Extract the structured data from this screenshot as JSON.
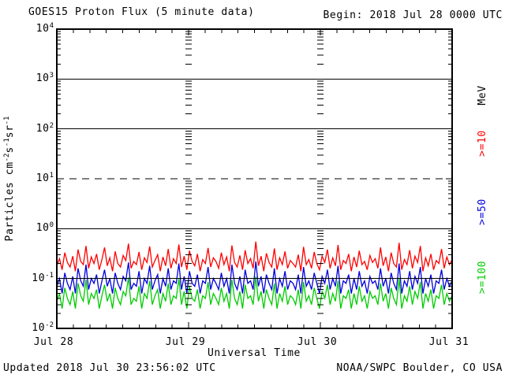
{
  "footer": {
    "updated": "Updated 2018 Jul 30 23:56:02 UTC",
    "source": "NOAA/SWPC Boulder, CO USA"
  },
  "chart_data": {
    "type": "line",
    "title": "GOES15 Proton Flux (5 minute data)",
    "begin_annotation": "Begin: 2018 Jul 28 0000 UTC",
    "xlabel": "Universal Time",
    "ylabel": "Particles cm^-2 s^-1 sr^-1",
    "ylabel_parts": {
      "p0": "Particles cm",
      "e0": "-2",
      "p1": "s",
      "e1": "-1",
      "p2": "sr",
      "e2": "-1"
    },
    "y_scale": "log",
    "ylim": [
      0.01,
      10000
    ],
    "y_ticks": [
      {
        "base": "10",
        "exp": "4"
      },
      {
        "base": "10",
        "exp": "3"
      },
      {
        "base": "10",
        "exp": "2"
      },
      {
        "base": "10",
        "exp": "1"
      },
      {
        "base": "10",
        "exp": "0"
      },
      {
        "base": "10",
        "exp": "-1"
      },
      {
        "base": "10",
        "exp": "-2"
      }
    ],
    "x_ticks": [
      "Jul 28",
      "Jul 29",
      "Jul 30",
      "Jul 31"
    ],
    "x_range_days": 3,
    "minor_x_tick_hours": 3,
    "grid": {
      "solid_levels": [
        1000,
        100,
        1,
        0.1
      ],
      "dashed_levels": [
        10
      ],
      "day_boundary_log_tick_columns": true
    },
    "legend_position": "right",
    "right_axis_unit": "MeV",
    "series": [
      {
        "name": "Proton flux >=10 MeV",
        "label": ">=10",
        "color": "#fe0000",
        "values": [
          0.18,
          0.25,
          0.15,
          0.33,
          0.21,
          0.17,
          0.28,
          0.14,
          0.38,
          0.22,
          0.19,
          0.45,
          0.16,
          0.27,
          0.2,
          0.31,
          0.15,
          0.24,
          0.42,
          0.18,
          0.26,
          0.14,
          0.35,
          0.2,
          0.17,
          0.29,
          0.23,
          0.5,
          0.16,
          0.22,
          0.19,
          0.34,
          0.15,
          0.26,
          0.21,
          0.44,
          0.17,
          0.23,
          0.3,
          0.14,
          0.27,
          0.18,
          0.39,
          0.16,
          0.25,
          0.2,
          0.48,
          0.17,
          0.28,
          0.15,
          0.36,
          0.22,
          0.18,
          0.31,
          0.14,
          0.24,
          0.2,
          0.41,
          0.17,
          0.26,
          0.22,
          0.16,
          0.33,
          0.19,
          0.27,
          0.14,
          0.46,
          0.21,
          0.17,
          0.29,
          0.15,
          0.37,
          0.2,
          0.25,
          0.16,
          0.55,
          0.18,
          0.28,
          0.14,
          0.32,
          0.21,
          0.17,
          0.4,
          0.15,
          0.26,
          0.19,
          0.35,
          0.16,
          0.23,
          0.2,
          0.17,
          0.3,
          0.14,
          0.43,
          0.19,
          0.24,
          0.16,
          0.34,
          0.2,
          0.15,
          0.28,
          0.21,
          0.38,
          0.16,
          0.26,
          0.18,
          0.47,
          0.15,
          0.23,
          0.2,
          0.31,
          0.14,
          0.27,
          0.17,
          0.36,
          0.19,
          0.22,
          0.15,
          0.29,
          0.21,
          0.25,
          0.16,
          0.42,
          0.18,
          0.27,
          0.14,
          0.33,
          0.2,
          0.17,
          0.52,
          0.15,
          0.24,
          0.19,
          0.37,
          0.16,
          0.28,
          0.21,
          0.45,
          0.14,
          0.26,
          0.18,
          0.31,
          0.15,
          0.23,
          0.2,
          0.39,
          0.16,
          0.27,
          0.19,
          0.24
        ]
      },
      {
        "name": "Proton flux >=50 MeV",
        "label": ">=50",
        "color": "#0000dd",
        "values": [
          0.07,
          0.1,
          0.05,
          0.13,
          0.08,
          0.06,
          0.11,
          0.05,
          0.16,
          0.09,
          0.07,
          0.19,
          0.06,
          0.1,
          0.08,
          0.12,
          0.05,
          0.09,
          0.15,
          0.07,
          0.1,
          0.05,
          0.13,
          0.08,
          0.06,
          0.11,
          0.09,
          0.21,
          0.06,
          0.08,
          0.07,
          0.14,
          0.05,
          0.1,
          0.08,
          0.18,
          0.06,
          0.09,
          0.12,
          0.05,
          0.1,
          0.07,
          0.16,
          0.06,
          0.09,
          0.08,
          0.2,
          0.06,
          0.11,
          0.05,
          0.14,
          0.08,
          0.07,
          0.12,
          0.05,
          0.09,
          0.08,
          0.17,
          0.06,
          0.1,
          0.08,
          0.06,
          0.13,
          0.07,
          0.1,
          0.05,
          0.19,
          0.08,
          0.06,
          0.11,
          0.05,
          0.15,
          0.08,
          0.09,
          0.06,
          0.22,
          0.07,
          0.11,
          0.05,
          0.12,
          0.08,
          0.06,
          0.16,
          0.05,
          0.1,
          0.07,
          0.14,
          0.06,
          0.09,
          0.08,
          0.06,
          0.12,
          0.05,
          0.17,
          0.07,
          0.09,
          0.06,
          0.13,
          0.08,
          0.05,
          0.11,
          0.08,
          0.15,
          0.06,
          0.1,
          0.07,
          0.18,
          0.05,
          0.09,
          0.08,
          0.12,
          0.05,
          0.1,
          0.06,
          0.14,
          0.07,
          0.09,
          0.05,
          0.11,
          0.08,
          0.09,
          0.06,
          0.16,
          0.07,
          0.1,
          0.05,
          0.13,
          0.08,
          0.06,
          0.2,
          0.05,
          0.09,
          0.07,
          0.14,
          0.06,
          0.11,
          0.08,
          0.17,
          0.05,
          0.1,
          0.07,
          0.12,
          0.05,
          0.09,
          0.08,
          0.15,
          0.06,
          0.1,
          0.07,
          0.09
        ]
      },
      {
        "name": "Proton flux >=100 MeV",
        "label": ">=100",
        "color": "#00cc00",
        "values": [
          0.035,
          0.05,
          0.025,
          0.065,
          0.04,
          0.03,
          0.055,
          0.025,
          0.08,
          0.045,
          0.035,
          0.095,
          0.03,
          0.05,
          0.04,
          0.06,
          0.025,
          0.045,
          0.075,
          0.035,
          0.05,
          0.025,
          0.065,
          0.04,
          0.03,
          0.055,
          0.045,
          0.105,
          0.03,
          0.04,
          0.035,
          0.07,
          0.025,
          0.05,
          0.04,
          0.09,
          0.03,
          0.045,
          0.06,
          0.025,
          0.05,
          0.035,
          0.08,
          0.03,
          0.045,
          0.04,
          0.1,
          0.03,
          0.055,
          0.025,
          0.07,
          0.04,
          0.035,
          0.06,
          0.025,
          0.045,
          0.04,
          0.085,
          0.03,
          0.05,
          0.04,
          0.03,
          0.065,
          0.035,
          0.05,
          0.025,
          0.095,
          0.04,
          0.03,
          0.055,
          0.025,
          0.075,
          0.04,
          0.045,
          0.03,
          0.11,
          0.035,
          0.055,
          0.025,
          0.06,
          0.04,
          0.03,
          0.08,
          0.025,
          0.05,
          0.035,
          0.07,
          0.03,
          0.045,
          0.04,
          0.03,
          0.06,
          0.025,
          0.085,
          0.035,
          0.045,
          0.03,
          0.065,
          0.04,
          0.025,
          0.055,
          0.04,
          0.075,
          0.03,
          0.05,
          0.035,
          0.09,
          0.025,
          0.045,
          0.04,
          0.06,
          0.025,
          0.05,
          0.03,
          0.07,
          0.035,
          0.045,
          0.025,
          0.055,
          0.04,
          0.045,
          0.03,
          0.08,
          0.035,
          0.05,
          0.025,
          0.065,
          0.04,
          0.03,
          0.1,
          0.025,
          0.045,
          0.035,
          0.07,
          0.03,
          0.055,
          0.04,
          0.085,
          0.025,
          0.05,
          0.035,
          0.06,
          0.025,
          0.045,
          0.04,
          0.075,
          0.03,
          0.05,
          0.035,
          0.045
        ]
      }
    ]
  }
}
